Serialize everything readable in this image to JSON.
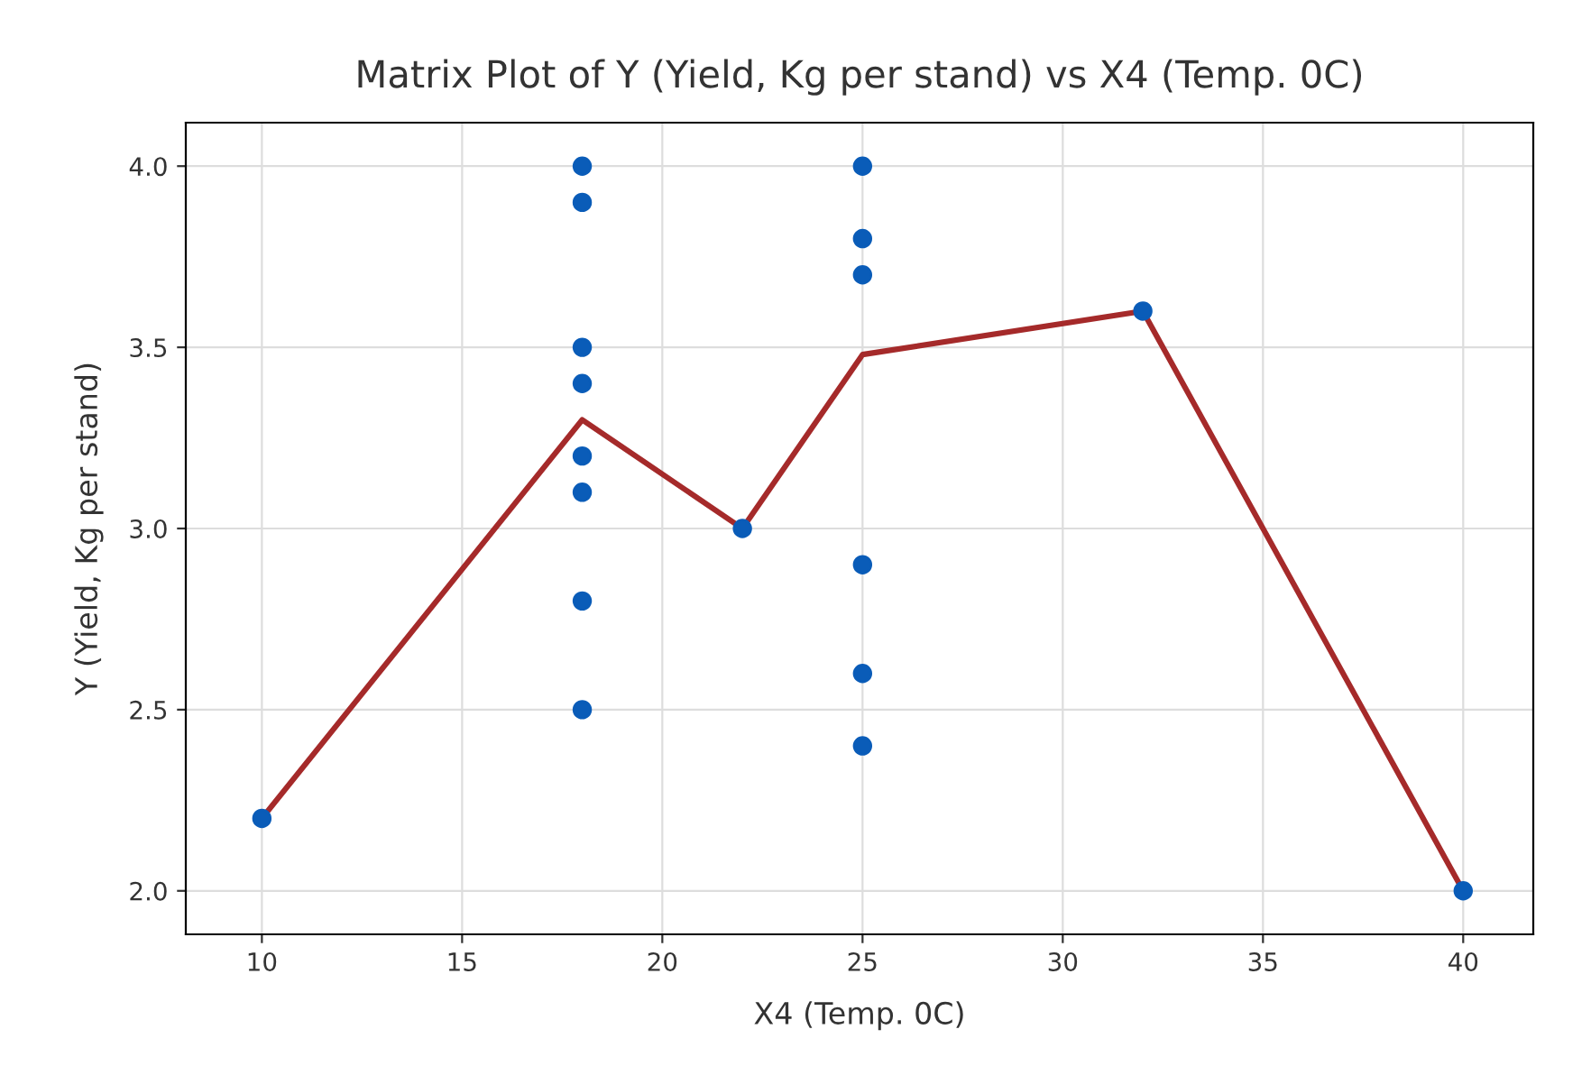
{
  "chart_data": {
    "type": "scatter",
    "title": "Matrix Plot of Y (Yield, Kg per stand) vs X4 (Temp. 0C)",
    "xlabel": "X4 (Temp. 0C)",
    "ylabel": "Y (Yield, Kg per stand)",
    "series": [
      {
        "color": "#0a5cb8",
        "marker": "circle",
        "x": [
          10,
          18,
          18,
          18,
          18,
          18,
          18,
          18,
          18,
          22,
          25,
          25,
          25,
          25,
          25,
          25,
          32,
          40
        ],
        "values": [
          2.2,
          4.0,
          3.9,
          3.5,
          3.4,
          3.2,
          3.1,
          2.8,
          2.5,
          3.0,
          4.0,
          3.8,
          3.7,
          2.9,
          2.6,
          2.4,
          3.6,
          2.0
        ]
      },
      {
        "type": "line",
        "color": "#a52a2a",
        "marker": "none",
        "line_style": "solid",
        "x": [
          10,
          18,
          22,
          25,
          32,
          40
        ],
        "values": [
          2.2,
          3.3,
          3.0,
          3.48,
          3.6,
          2.0
        ]
      }
    ],
    "xlim": [
      8.1,
      41.75
    ],
    "ylim": [
      1.88,
      4.12
    ],
    "xticks": [
      10,
      15,
      20,
      25,
      30,
      35,
      40
    ],
    "yticks": [
      {
        "value": 2.0,
        "label": "2.0"
      },
      {
        "value": 2.5,
        "label": "2.5"
      },
      {
        "value": 3.0,
        "label": "3.0"
      },
      {
        "value": 3.5,
        "label": "3.5"
      },
      {
        "value": 4.0,
        "label": "4.0"
      }
    ],
    "grid": true,
    "legend": false
  }
}
